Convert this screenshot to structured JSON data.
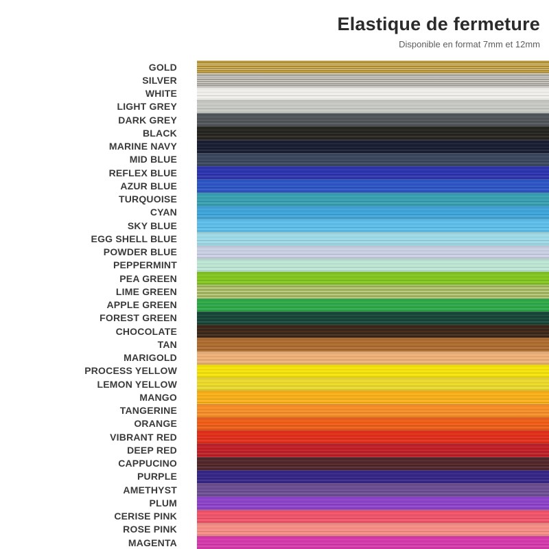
{
  "header": {
    "title": "Elastique de fermeture",
    "subtitle": "Disponible en format 7mm et 12mm"
  },
  "palette": {
    "items": [
      {
        "name": "GOLD",
        "hex": "#C5A13B",
        "texture": "metallic"
      },
      {
        "name": "SILVER",
        "hex": "#BCBAB4",
        "texture": "metallic"
      },
      {
        "name": "WHITE",
        "hex": "#EFEEE9",
        "texture": "plain"
      },
      {
        "name": "LIGHT GREY",
        "hex": "#C7C9C3",
        "texture": "plain"
      },
      {
        "name": "DARK GREY",
        "hex": "#50555A",
        "texture": "plain"
      },
      {
        "name": "BLACK",
        "hex": "#26251F",
        "texture": "plain"
      },
      {
        "name": "MARINE NAVY",
        "hex": "#1A1E33",
        "texture": "plain"
      },
      {
        "name": "MID BLUE",
        "hex": "#39485C",
        "texture": "plain"
      },
      {
        "name": "REFLEX BLUE",
        "hex": "#2C34AE",
        "texture": "plain"
      },
      {
        "name": "AZUR BLUE",
        "hex": "#2D55C3",
        "texture": "plain"
      },
      {
        "name": "TURQUOISE",
        "hex": "#389FB0",
        "texture": "plain"
      },
      {
        "name": "CYAN",
        "hex": "#3FA5D9",
        "texture": "plain"
      },
      {
        "name": "SKY BLUE",
        "hex": "#5FBEE9",
        "texture": "plain"
      },
      {
        "name": "EGG SHELL BLUE",
        "hex": "#9ED9E6",
        "texture": "plain"
      },
      {
        "name": "POWDER BLUE",
        "hex": "#C8CFE2",
        "texture": "plain"
      },
      {
        "name": "PEPPERMINT",
        "hex": "#BCE5D4",
        "texture": "plain"
      },
      {
        "name": "PEA GREEN",
        "hex": "#82C51F",
        "texture": "plain"
      },
      {
        "name": "LIME GREEN",
        "hex": "#A6B963",
        "texture": "streaky"
      },
      {
        "name": "APPLE GREEN",
        "hex": "#2FA84A",
        "texture": "plain"
      },
      {
        "name": "FOREST GREEN",
        "hex": "#174638",
        "texture": "plain"
      },
      {
        "name": "CHOCOLATE",
        "hex": "#3D2719",
        "texture": "plain"
      },
      {
        "name": "TAN",
        "hex": "#AD6C30",
        "texture": "plain"
      },
      {
        "name": "MARIGOLD",
        "hex": "#ECB077",
        "texture": "plain"
      },
      {
        "name": "PROCESS YELLOW",
        "hex": "#F4E20A",
        "texture": "plain"
      },
      {
        "name": "LEMON YELLOW",
        "hex": "#EAD82B",
        "texture": "plain"
      },
      {
        "name": "MANGO",
        "hex": "#F7B01A",
        "texture": "plain"
      },
      {
        "name": "TANGERINE",
        "hex": "#F58D28",
        "texture": "plain"
      },
      {
        "name": "ORANGE",
        "hex": "#EE5E18",
        "texture": "plain"
      },
      {
        "name": "VIBRANT RED",
        "hex": "#E0301B",
        "texture": "plain"
      },
      {
        "name": "DEEP RED",
        "hex": "#BF1F27",
        "texture": "plain"
      },
      {
        "name": "CAPPUCINO",
        "hex": "#51272A",
        "texture": "plain"
      },
      {
        "name": "PURPLE",
        "hex": "#362786",
        "texture": "plain"
      },
      {
        "name": "AMETHYST",
        "hex": "#6B4D92",
        "texture": "plain"
      },
      {
        "name": "PLUM",
        "hex": "#8C43C9",
        "texture": "plain"
      },
      {
        "name": "CERISE PINK",
        "hex": "#F0546A",
        "texture": "plain"
      },
      {
        "name": "ROSE PINK",
        "hex": "#F68E85",
        "texture": "plain"
      },
      {
        "name": "MAGENTA",
        "hex": "#D53AAC",
        "texture": "plain"
      }
    ]
  }
}
